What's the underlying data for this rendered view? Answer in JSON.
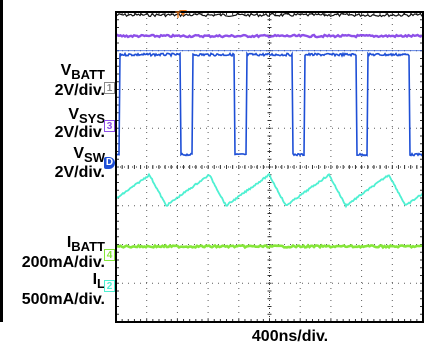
{
  "colors": {
    "vbatt": "#8d4fe8",
    "vsw": "#1e4fd6",
    "il": "#4ff0d2",
    "ibatt": "#86e63a",
    "trigger": "#f07a1c",
    "grid": "#333333",
    "frame": "#000000",
    "background": "#ffffff"
  },
  "chart_data": {
    "type": "line",
    "xlabel": "400ns/div.",
    "divisions": {
      "x": 10,
      "y": 8
    },
    "channels": [
      {
        "id": "vbatt",
        "label": "V",
        "sub": "BATT",
        "scale": "2V/div.",
        "marker": "1",
        "baseline_div": 3.65,
        "trace": "flat",
        "position_div_from_top": 0.62
      },
      {
        "id": "vsys",
        "label": "V",
        "sub": "SYS",
        "scale": "2V/div.",
        "marker": "3",
        "baseline_div": 2.5
      },
      {
        "id": "vsw",
        "label": "V",
        "sub": "SW",
        "scale": "2V/div.",
        "marker": "D",
        "trace": "pulse",
        "high_div_from_top": 1.1,
        "low_div_from_top": 3.68,
        "off_intervals_div": [
          [
            0.0,
            0.12
          ],
          [
            2.1,
            2.5
          ],
          [
            3.85,
            4.25
          ],
          [
            5.75,
            6.15
          ],
          [
            7.85,
            8.2
          ],
          [
            9.55,
            10
          ]
        ]
      },
      {
        "id": "ibatt",
        "label": "I",
        "sub": "BATT",
        "scale": "200mA/div.",
        "marker": "4",
        "trace": "flat",
        "position_div_from_top": 6.05
      },
      {
        "id": "il",
        "label": "I",
        "sub": "L",
        "scale": "500mA/div.",
        "marker": "2",
        "trace": "sawtooth",
        "period_div": 1.95,
        "first_peak_div": 1.05,
        "peak_div_from_top": 4.2,
        "valley_div_from_top": 5.0
      }
    ]
  },
  "labels": {
    "vbatt_scale": "2V/div.",
    "vsys_scale": "2V/div.",
    "vsw_scale": "2V/div.",
    "ibatt_scale": "200mA/div.",
    "il_scale": "500mA/div.",
    "vbatt_main": "V",
    "vbatt_sub": "BATT",
    "vsys_main": "V",
    "vsys_sub": "SYS",
    "vsw_main": "V",
    "vsw_sub": "SW",
    "ibatt_main": "I",
    "ibatt_sub": "BATT",
    "il_main": "I",
    "il_sub": "L",
    "marker_vbatt": "1",
    "marker_vsys": "3",
    "marker_vsw": "D",
    "marker_ibatt": "4",
    "marker_il": "2",
    "trigger_marker": "T"
  }
}
